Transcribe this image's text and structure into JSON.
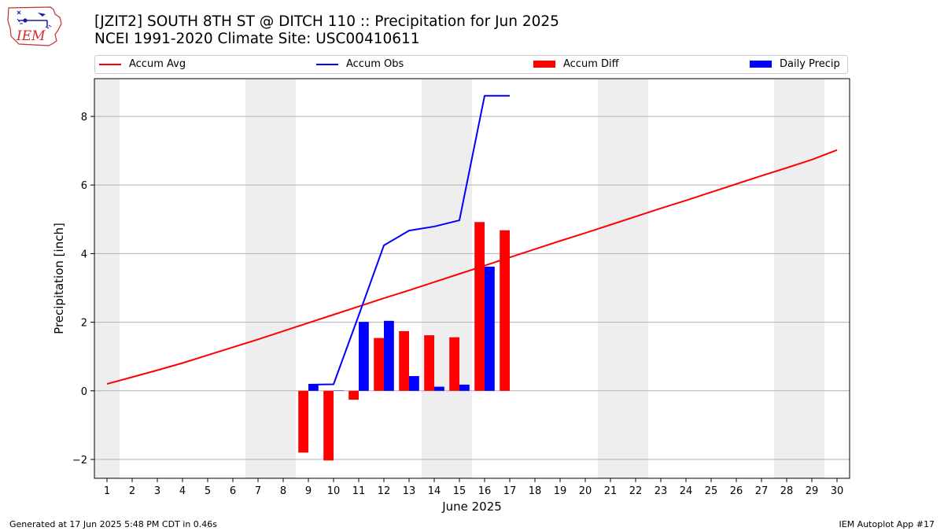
{
  "header": {
    "title_line1": "[JZIT2] SOUTH 8TH ST @ DITCH 110 :: Precipitation for Jun 2025",
    "title_line2": "NCEI 1991-2020 Climate Site: USC00410611"
  },
  "logo": {
    "text": "IEM",
    "icon": "iem-iowa-logo"
  },
  "footer": {
    "generated": "Generated at 17 Jun 2025 5:48 PM CDT in 0.46s",
    "app": "IEM Autoplot App #17"
  },
  "chart_data": {
    "type": "bar",
    "xlabel": "June 2025",
    "ylabel": "Precipitation [inch]",
    "xlim": [
      0.5,
      30.5
    ],
    "ylim": [
      -2.55,
      9.1
    ],
    "x_ticks": [
      1,
      2,
      3,
      4,
      5,
      6,
      7,
      8,
      9,
      10,
      11,
      12,
      13,
      14,
      15,
      16,
      17,
      18,
      19,
      20,
      21,
      22,
      23,
      24,
      25,
      26,
      27,
      28,
      29,
      30
    ],
    "y_ticks": [
      -2,
      0,
      2,
      4,
      6,
      8
    ],
    "y_tick_labels": [
      "−2",
      "0",
      "2",
      "4",
      "6",
      "8"
    ],
    "grid": "horizontal",
    "legend_placement": "top",
    "weekend_shading": [
      [
        0.5,
        1.5
      ],
      [
        6.5,
        8.5
      ],
      [
        13.5,
        15.5
      ],
      [
        20.5,
        22.5
      ],
      [
        27.5,
        29.5
      ]
    ],
    "series": [
      {
        "name": "Accum Avg",
        "kind": "line",
        "color": "#ff0000",
        "x": [
          1,
          2,
          3,
          4,
          5,
          6,
          7,
          8,
          9,
          10,
          11,
          12,
          13,
          14,
          15,
          16,
          17,
          18,
          19,
          20,
          21,
          22,
          23,
          24,
          25,
          26,
          27,
          28,
          29,
          30
        ],
        "values": [
          0.2,
          0.4,
          0.6,
          0.81,
          1.04,
          1.27,
          1.5,
          1.74,
          1.98,
          2.22,
          2.46,
          2.7,
          2.93,
          3.17,
          3.41,
          3.65,
          3.89,
          4.13,
          4.37,
          4.6,
          4.84,
          5.08,
          5.32,
          5.55,
          5.79,
          6.03,
          6.27,
          6.5,
          6.74,
          7.02
        ]
      },
      {
        "name": "Accum Obs",
        "kind": "line",
        "color": "#0000ff",
        "x": [
          9,
          10,
          11,
          12,
          13,
          14,
          15,
          16,
          17
        ],
        "values": [
          0.18,
          0.19,
          2.2,
          4.24,
          4.67,
          4.79,
          4.97,
          8.6,
          8.6
        ]
      },
      {
        "name": "Accum Diff",
        "kind": "bar",
        "color": "#ff0000",
        "offset": -0.2,
        "x": [
          9,
          10,
          11,
          12,
          13,
          14,
          15,
          16,
          17
        ],
        "values": [
          -1.8,
          -2.03,
          -0.26,
          1.54,
          1.74,
          1.62,
          1.56,
          4.92,
          4.68
        ]
      },
      {
        "name": "Daily Precip",
        "kind": "bar",
        "color": "#0000ff",
        "offset": 0.2,
        "x": [
          9,
          10,
          11,
          12,
          13,
          14,
          15,
          16,
          17
        ],
        "values": [
          0.18,
          0.01,
          2.01,
          2.04,
          0.43,
          0.12,
          0.18,
          3.62,
          0.0
        ]
      }
    ]
  }
}
